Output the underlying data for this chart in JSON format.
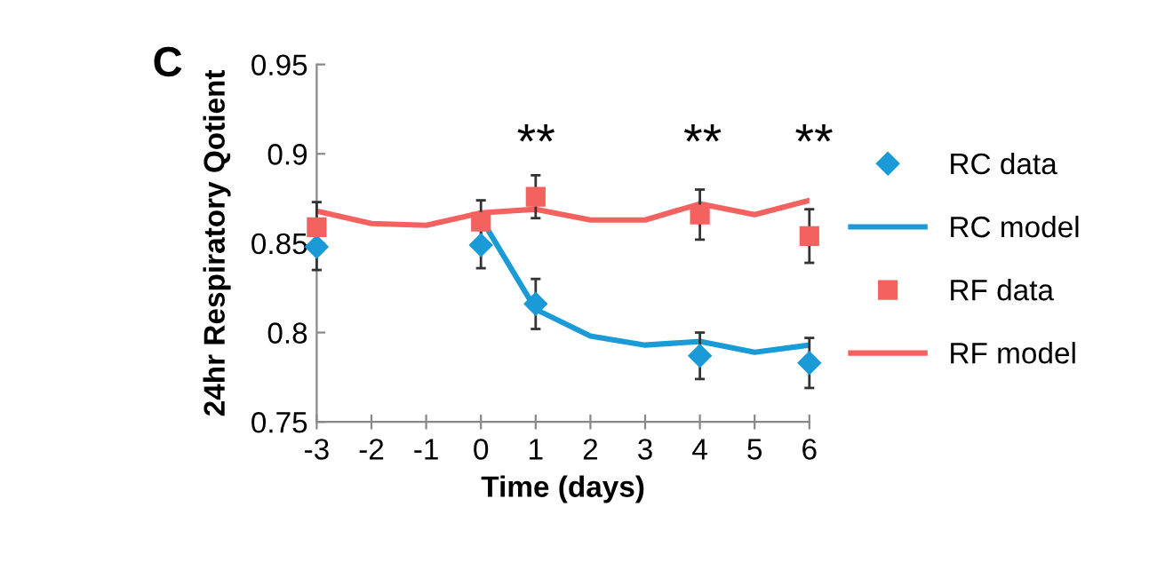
{
  "chart_data": {
    "type": "line",
    "xlabel": "Time (days)",
    "ylabel": "24hr Respiratory Qotient",
    "xlim": [
      -3,
      6
    ],
    "xticks": [
      -3,
      -2,
      -1,
      0,
      1,
      2,
      3,
      4,
      5,
      6
    ],
    "ylim": [
      0.75,
      0.95
    ],
    "yticks": [
      0.75,
      0.8,
      0.85,
      0.9,
      0.95
    ],
    "grid": false,
    "legend": "right",
    "annotations": [
      "C",
      "**",
      "**",
      "**"
    ],
    "series": [
      {
        "name": "RC data",
        "type": "scatter",
        "marker": "diamond",
        "color": "#1a9ad6",
        "x": [
          -3,
          0,
          1,
          4,
          6
        ],
        "values": [
          0.848,
          0.849,
          0.816,
          0.787,
          0.783
        ],
        "errors": [
          0.013,
          0.013,
          0.014,
          0.013,
          0.014
        ]
      },
      {
        "name": "RC model",
        "color": "#1a9ad6",
        "x": [
          0,
          1,
          2,
          3,
          4,
          5,
          6
        ],
        "values": [
          0.864,
          0.813,
          0.798,
          0.793,
          0.795,
          0.789,
          0.793
        ]
      },
      {
        "name": "RF data",
        "type": "scatter",
        "marker": "square",
        "color": "#f4625f",
        "x": [
          -3,
          0,
          1,
          4,
          6
        ],
        "values": [
          0.859,
          0.862,
          0.876,
          0.866,
          0.854
        ],
        "errors": [
          0.014,
          0.012,
          0.012,
          0.014,
          0.015
        ]
      },
      {
        "name": "RF model",
        "color": "#f4625f",
        "x": [
          -3,
          -2,
          -1,
          0,
          1,
          2,
          3,
          4,
          5,
          6
        ],
        "values": [
          0.868,
          0.861,
          0.86,
          0.867,
          0.869,
          0.863,
          0.863,
          0.872,
          0.866,
          0.874
        ]
      }
    ]
  }
}
